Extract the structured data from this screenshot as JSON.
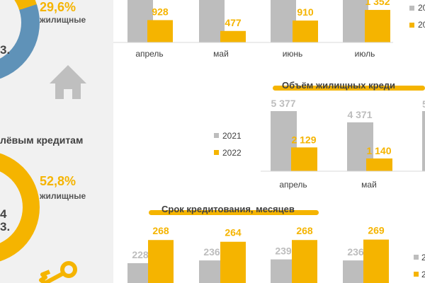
{
  "colors": {
    "gray": "#bdbdbd",
    "gold": "#f5b400",
    "blue": "#5f92b8",
    "text": "#404040"
  },
  "icons": [
    "house-icon",
    "key-icon"
  ],
  "left_panel": {
    "top_percent": "29,6%",
    "top_label": "жилищные",
    "top_fragment_1": "",
    "top_fragment_2": "3.",
    "section_title": "лёвым кредитам",
    "bottom_percent": "52,8%",
    "bottom_label": "жилищные",
    "bottom_fragment_1": "4",
    "bottom_fragment_2": "3."
  },
  "chart_data": [
    {
      "type": "bar",
      "title": "",
      "categories": [
        "апрель",
        "май",
        "июнь",
        "июль"
      ],
      "series": [
        {
          "name": "20",
          "values": [
            null,
            null,
            null,
            null
          ]
        },
        {
          "name": "20",
          "values": [
            928,
            477,
            910,
            1352
          ]
        }
      ],
      "value_labels": [
        "928",
        "477",
        "910",
        "1 352"
      ],
      "legend": "right"
    },
    {
      "type": "bar",
      "title": "Объём жилищных креди",
      "categories": [
        "апрель",
        "май",
        ""
      ],
      "series": [
        {
          "name": "2021",
          "values": [
            5377,
            4371,
            null
          ],
          "labels": [
            "5 377",
            "4 371",
            "5"
          ]
        },
        {
          "name": "2022",
          "values": [
            2129,
            1140,
            null
          ],
          "labels": [
            "2 129",
            "1 140",
            ""
          ]
        }
      ],
      "legend": "left"
    },
    {
      "type": "bar",
      "title": "Срок кредитования, месяцев",
      "categories": [
        "",
        "",
        "",
        ""
      ],
      "series": [
        {
          "name": "2",
          "values": [
            228,
            236,
            239,
            236
          ]
        },
        {
          "name": "2",
          "values": [
            268,
            264,
            268,
            269
          ]
        }
      ],
      "legend": "right"
    }
  ]
}
